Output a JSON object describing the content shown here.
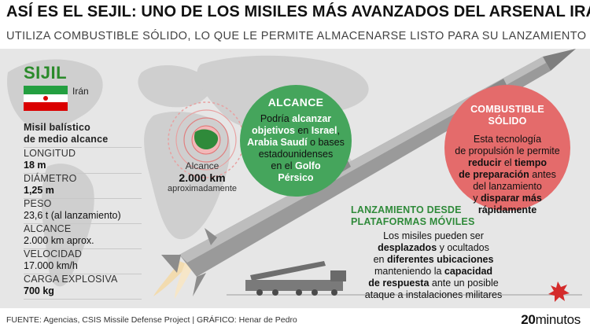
{
  "header": {
    "title": "ASÍ ES EL SEJIL: UNO DE LOS MISILES MÁS AVANZADOS DEL ARSENAL IRANÍ",
    "subtitle": "UTILIZA COMBUSTIBLE SÓLIDO, LO QUE LE PERMITE ALMACENARSE LISTO PARA SU LANZAMIENTO"
  },
  "missile": {
    "name": "SIJIL",
    "country": "Irán",
    "type_line1": "Misil balístico",
    "type_line2": "de medio alcance"
  },
  "specs": [
    {
      "label": "LONGITUD",
      "value": "18 m"
    },
    {
      "label": "DIÁMETRO",
      "value": "1,25 m"
    },
    {
      "label": "PESO",
      "value": "23,6 t (al lanzamiento)"
    },
    {
      "label": "ALCANCE",
      "value": "2.000 km aprox."
    },
    {
      "label": "VELOCIDAD",
      "value": "17.000 km/h"
    },
    {
      "label": "CARGA EXPLOSIVA",
      "value": "700 kg"
    }
  ],
  "range_map": {
    "label": "Alcance",
    "value": "2.000 km",
    "note": "aproximadamente"
  },
  "alcance_circle": {
    "title": "ALCANCE",
    "t1": "Podría ",
    "b1": "alcanzar",
    "b2": "objetivos",
    "t2": " en ",
    "b3": "Israel",
    "t3": ",",
    "b4": "Arabia Saudí",
    "t4": " o bases",
    "t5": "estadounidenses",
    "t6": "en el ",
    "b5": "Golfo",
    "b6": "Pérsico"
  },
  "fuel_circle": {
    "title_line1": "COMBUSTIBLE",
    "title_line2": "SÓLIDO",
    "t1": "Esta tecnología",
    "t2": "de propulsión le permite",
    "b1": "reducir",
    "t3": " el ",
    "b2": "tiempo",
    "b3": "de preparación",
    "t4": " antes",
    "t5": "del lanzamiento",
    "t6": "y ",
    "b4": "disparar más",
    "b5": "rápidamente"
  },
  "launch": {
    "title_line1": "LANZAMIENTO DESDE",
    "title_line2": "PLATAFORMAS MÓVILES",
    "t1": "Los misiles pueden ser",
    "b1": "desplazados",
    "t2": " y ocultados",
    "t3": "en ",
    "b2": "diferentes ubicaciones",
    "t4": "manteniendo la ",
    "b3": "capacidad",
    "b4": "de respuesta",
    "t5": " ante un posible",
    "t6": "ataque a instalaciones militares"
  },
  "footer": {
    "source": "FUENTE: Agencias, CSIS Missile Defense Project  |  GRÁFICO: Henar de Pedro",
    "brand_num": "20",
    "brand_text": "minutos"
  },
  "colors": {
    "green": "#45a55c",
    "red": "#e46b6b",
    "dark_green_text": "#2f8a3a",
    "panel": "#e6e6e6"
  }
}
